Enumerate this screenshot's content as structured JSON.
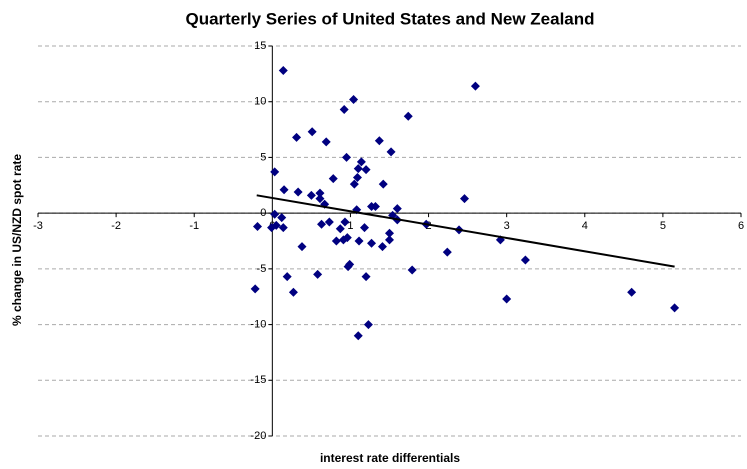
{
  "chart_data": {
    "type": "scatter",
    "title": "Quarterly Series of United States and New Zealand",
    "x_label": "interest rate differentials",
    "y_label": "% change in US/NZD spot rate",
    "xlim": [
      -3,
      6
    ],
    "xticks": [
      -3,
      -2,
      -1,
      0,
      1,
      2,
      3,
      4,
      5,
      6
    ],
    "ylim": [
      -20,
      15
    ],
    "yticks": [
      -20,
      -15,
      -10,
      -5,
      0,
      5,
      10,
      15
    ],
    "grid": true,
    "series": [
      {
        "color": "#000080",
        "x": [
          -0.22,
          -0.19,
          0.03,
          0.14,
          0.03,
          0.05,
          0.12,
          0.14,
          -0.01,
          0.15,
          0.19,
          0.27,
          0.31,
          0.33,
          0.38,
          0.51,
          0.5,
          0.58,
          0.61,
          0.63,
          0.61,
          0.67,
          0.69,
          0.73,
          0.78,
          0.82,
          0.87,
          0.91,
          0.92,
          0.95,
          0.93,
          0.96,
          0.99,
          0.97,
          1.04,
          1.05,
          1.09,
          1.08,
          1.1,
          1.14,
          1.11,
          1.1,
          1.18,
          1.2,
          1.2,
          1.23,
          1.27,
          1.27,
          1.32,
          1.37,
          1.41,
          1.42,
          1.5,
          1.5,
          1.52,
          1.54,
          1.6,
          1.6,
          1.74,
          1.79,
          1.97,
          2.24,
          2.39,
          2.46,
          2.6,
          2.92,
          3.0,
          3.24,
          4.6,
          5.15
        ],
        "values": [
          -6.8,
          -1.2,
          3.7,
          12.8,
          -0.1,
          -1.1,
          -0.4,
          -1.3,
          -1.3,
          2.1,
          -5.7,
          -7.1,
          6.8,
          1.9,
          -3.0,
          7.3,
          1.6,
          -5.5,
          1.8,
          -1.0,
          1.3,
          0.8,
          6.4,
          -0.8,
          3.1,
          -2.5,
          -1.4,
          -2.4,
          9.3,
          5.0,
          -0.8,
          -2.2,
          -4.6,
          -4.8,
          10.2,
          2.6,
          3.2,
          0.3,
          4.0,
          4.6,
          -2.5,
          -11.0,
          -1.3,
          3.9,
          -5.7,
          -10.0,
          0.6,
          -2.7,
          0.6,
          6.5,
          -3.0,
          2.6,
          -2.4,
          -1.8,
          5.5,
          -0.2,
          0.4,
          -0.6,
          8.7,
          -5.1,
          -1.0,
          -3.5,
          -1.5,
          1.3,
          11.4,
          -2.4,
          -7.7,
          -4.2,
          -7.1,
          -8.5
        ]
      }
    ],
    "trendline": {
      "color": "#000000",
      "x": [
        -0.2,
        5.15
      ],
      "values": [
        1.6,
        -4.8
      ]
    }
  }
}
